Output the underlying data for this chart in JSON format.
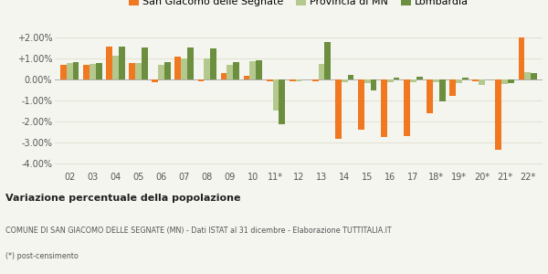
{
  "categories": [
    "02",
    "03",
    "04",
    "05",
    "06",
    "07",
    "08",
    "09",
    "10",
    "11*",
    "12",
    "13",
    "14",
    "15",
    "16",
    "17",
    "18*",
    "19*",
    "20*",
    "21*",
    "22*"
  ],
  "san_giacomo": [
    0.72,
    0.7,
    1.6,
    0.8,
    -0.1,
    1.1,
    -0.05,
    0.3,
    0.2,
    -0.05,
    -0.05,
    -0.05,
    -2.8,
    -2.4,
    -2.75,
    -2.7,
    -1.6,
    -0.75,
    -0.05,
    -3.35,
    2.0
  ],
  "provincia_mn": [
    0.8,
    0.75,
    1.15,
    0.8,
    0.7,
    1.0,
    1.0,
    0.7,
    0.9,
    -1.45,
    -0.05,
    0.75,
    -0.1,
    -0.15,
    -0.1,
    -0.1,
    -0.1,
    -0.15,
    -0.25,
    -0.2,
    0.35
  ],
  "lombardia": [
    0.85,
    0.8,
    1.6,
    1.55,
    0.85,
    1.55,
    1.5,
    0.85,
    0.95,
    -2.1,
    0.0,
    1.8,
    0.25,
    -0.5,
    0.1,
    0.15,
    -1.05,
    0.1,
    0.0,
    -0.15,
    0.3
  ],
  "color_san_giacomo": "#f07820",
  "color_provincia": "#b5c98e",
  "color_lombardia": "#6b8f3e",
  "title": "Variazione percentuale della popolazione",
  "subtitle1": "COMUNE DI SAN GIACOMO DELLE SEGNATE (MN) - Dati ISTAT al 31 dicembre - Elaborazione TUTTITALIA.IT",
  "subtitle2": "(*) post-censimento",
  "legend_labels": [
    "San Giacomo delle Segnate",
    "Provincia di MN",
    "Lombardia"
  ],
  "ylim": [
    -4.3,
    2.5
  ],
  "yticks": [
    -4.0,
    -3.0,
    -2.0,
    -1.0,
    0.0,
    1.0,
    2.0
  ],
  "bg_color": "#f5f5f0",
  "grid_color": "#ddddcc"
}
